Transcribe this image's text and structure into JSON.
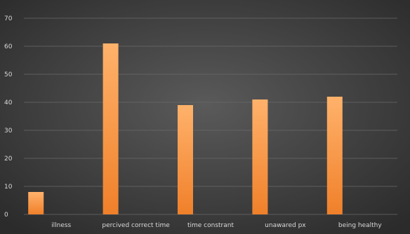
{
  "chart_data": {
    "type": "bar",
    "categories": [
      "illness",
      "percived correct time",
      "time constrant",
      "unawared px",
      "being healthy"
    ],
    "values": [
      8,
      61,
      39,
      41,
      42
    ],
    "title": "",
    "xlabel": "",
    "ylabel": "",
    "ylim": [
      0,
      70
    ],
    "yticks": [
      0,
      10,
      20,
      30,
      40,
      50,
      60,
      70
    ],
    "grid": true,
    "legend": "none",
    "colors": {
      "bar_top": "#ffb26b",
      "bar_bottom": "#f0802a",
      "background_center": "#5a5a5a",
      "background_edge": "#2b2b2b",
      "gridline": "#6a6a6a",
      "text": "#d9d9d9"
    }
  }
}
